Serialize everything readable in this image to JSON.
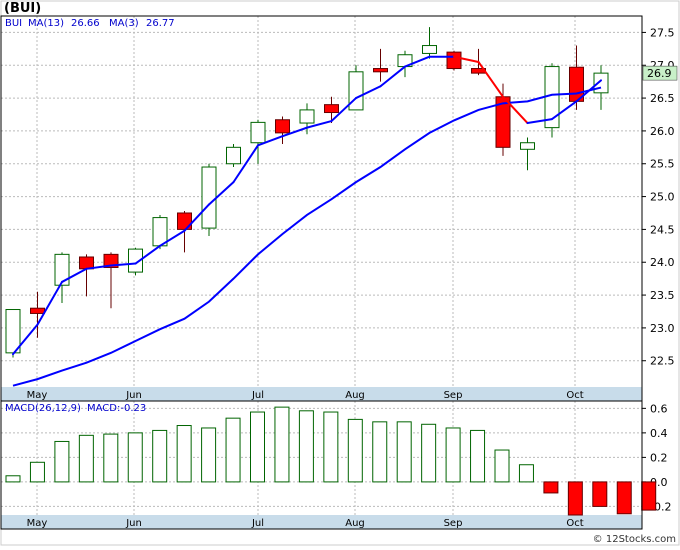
{
  "header": {
    "symbol": "(BUI)",
    "legend_symbol": "BUI",
    "ma13_label": "MA(13)",
    "ma13_value": "26.66",
    "ma3_label": "MA(3)",
    "ma3_value": "26.77"
  },
  "macd_header": {
    "label": "MACD(26,12,9)",
    "value_label": "MACD:-0.23"
  },
  "last_price_badge": "26.9",
  "watermark": "© 12Stocks.com",
  "colors": {
    "up_candle": "#006400",
    "down_candle": "#ff0000",
    "ma13": "#0000ff",
    "ma3": "#ff0000",
    "axis_band": "#c8dcea",
    "frame": "#000000",
    "badge": "#c8f0c8"
  },
  "chart_data": [
    {
      "type": "candlestick",
      "x_labels": [
        "May",
        "Jun",
        "Jul",
        "Aug",
        "Sep",
        "Oct"
      ],
      "y_ticks": [
        22.5,
        23.0,
        23.5,
        24.0,
        24.5,
        25.0,
        25.5,
        26.0,
        26.5,
        27.0,
        27.5
      ],
      "y_tick_labels": [
        "22.5",
        "23.0",
        "23.5",
        "24.0",
        "24.5",
        "25.0",
        "25.5",
        "26.0",
        "26.5",
        "27.0",
        "27.5"
      ],
      "ylim": [
        22.1,
        27.75
      ],
      "grid": true,
      "candles": [
        {
          "o": 22.62,
          "h": 23.28,
          "l": 22.55,
          "c": 23.28
        },
        {
          "o": 23.3,
          "h": 23.55,
          "l": 22.85,
          "c": 23.22
        },
        {
          "o": 23.65,
          "h": 24.15,
          "l": 23.38,
          "c": 24.12
        },
        {
          "o": 24.08,
          "h": 24.12,
          "l": 23.48,
          "c": 23.9
        },
        {
          "o": 24.12,
          "h": 24.15,
          "l": 23.3,
          "c": 23.92
        },
        {
          "o": 23.85,
          "h": 24.22,
          "l": 23.8,
          "c": 24.2
        },
        {
          "o": 24.25,
          "h": 24.72,
          "l": 24.2,
          "c": 24.68
        },
        {
          "o": 24.75,
          "h": 24.78,
          "l": 24.15,
          "c": 24.5
        },
        {
          "o": 24.52,
          "h": 25.5,
          "l": 24.4,
          "c": 25.45
        },
        {
          "o": 25.5,
          "h": 25.8,
          "l": 25.45,
          "c": 25.75
        },
        {
          "o": 25.82,
          "h": 26.17,
          "l": 25.5,
          "c": 26.13
        },
        {
          "o": 26.17,
          "h": 26.22,
          "l": 25.8,
          "c": 25.97
        },
        {
          "o": 26.12,
          "h": 26.42,
          "l": 25.95,
          "c": 26.32
        },
        {
          "o": 26.4,
          "h": 26.52,
          "l": 26.12,
          "c": 26.28
        },
        {
          "o": 26.32,
          "h": 27.0,
          "l": 26.32,
          "c": 26.9
        },
        {
          "o": 26.95,
          "h": 27.25,
          "l": 26.75,
          "c": 26.9
        },
        {
          "o": 26.98,
          "h": 27.22,
          "l": 26.82,
          "c": 27.16
        },
        {
          "o": 27.18,
          "h": 27.58,
          "l": 27.1,
          "c": 27.3
        },
        {
          "o": 27.2,
          "h": 27.22,
          "l": 26.92,
          "c": 26.95
        },
        {
          "o": 26.95,
          "h": 27.25,
          "l": 26.85,
          "c": 26.88
        },
        {
          "o": 26.52,
          "h": 26.72,
          "l": 25.62,
          "c": 25.75
        },
        {
          "o": 25.72,
          "h": 25.9,
          "l": 25.4,
          "c": 25.82
        },
        {
          "o": 26.05,
          "h": 27.03,
          "l": 25.9,
          "c": 26.98
        },
        {
          "o": 26.97,
          "h": 27.3,
          "l": 26.32,
          "c": 26.45
        },
        {
          "o": 26.58,
          "h": 27.0,
          "l": 26.32,
          "c": 26.88
        }
      ],
      "series": [
        {
          "name": "MA(13)",
          "values": [
            22.12,
            22.22,
            22.35,
            22.47,
            22.62,
            22.8,
            22.98,
            23.14,
            23.4,
            23.75,
            24.12,
            24.43,
            24.72,
            24.96,
            25.22,
            25.45,
            25.72,
            25.97,
            26.16,
            26.32,
            26.42,
            26.45,
            26.55,
            26.57,
            26.66
          ]
        },
        {
          "name": "MA(3)",
          "values": [
            22.6,
            23.05,
            23.7,
            23.9,
            23.95,
            23.98,
            24.25,
            24.48,
            24.88,
            25.22,
            25.78,
            25.92,
            26.05,
            26.15,
            26.5,
            26.68,
            26.98,
            27.13,
            27.13,
            27.05,
            26.52,
            26.12,
            26.18,
            26.45,
            26.77
          ]
        }
      ]
    },
    {
      "type": "bar",
      "name": "MACD(26,12,9)",
      "y_ticks": [
        -0.2,
        0.0,
        0.2,
        0.4,
        0.6
      ],
      "y_tick_labels": [
        "-0.2",
        "0.0",
        "0.2",
        "0.4",
        "0.6"
      ],
      "ylim": [
        -0.27,
        0.66
      ],
      "x_labels": [
        "May",
        "Jun",
        "Jul",
        "Aug",
        "Sep",
        "Oct"
      ],
      "values": [
        0.05,
        0.16,
        0.33,
        0.38,
        0.39,
        0.4,
        0.42,
        0.46,
        0.44,
        0.52,
        0.57,
        0.61,
        0.58,
        0.57,
        0.51,
        0.49,
        0.49,
        0.47,
        0.44,
        0.42,
        0.26,
        0.14,
        -0.09,
        -0.27,
        -0.2,
        -0.26,
        -0.23
      ]
    }
  ]
}
